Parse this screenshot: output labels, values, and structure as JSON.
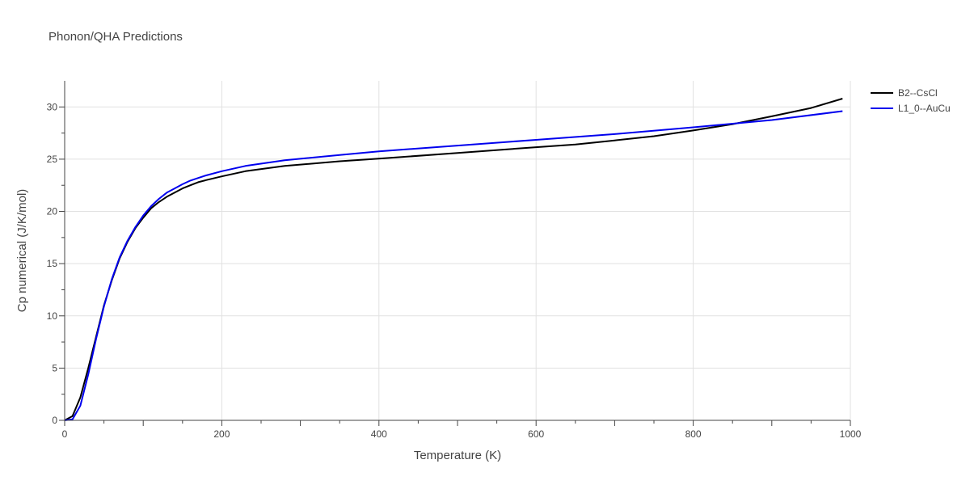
{
  "chart_data": {
    "type": "line",
    "title": "Phonon/QHA Predictions",
    "xlabel": "Temperature (K)",
    "ylabel": "Cp numerical (J/K/mol)",
    "xlim": [
      0,
      1000
    ],
    "ylim": [
      0,
      32.5
    ],
    "x_ticks": [
      0,
      200,
      400,
      600,
      800,
      1000
    ],
    "y_ticks": [
      0,
      5,
      10,
      15,
      20,
      25,
      30
    ],
    "grid": true,
    "legend_position": "top-right",
    "series": [
      {
        "name": "B2--CsCl",
        "color": "#000000",
        "x": [
          0,
          10,
          20,
          30,
          40,
          50,
          60,
          70,
          80,
          90,
          100,
          110,
          120,
          130,
          140,
          150,
          160,
          170,
          180,
          200,
          230,
          280,
          350,
          400,
          500,
          600,
          650,
          700,
          750,
          800,
          850,
          900,
          950,
          990
        ],
        "y": [
          0,
          0.4,
          2.2,
          5.0,
          8.0,
          11.0,
          13.4,
          15.5,
          17.1,
          18.4,
          19.4,
          20.3,
          20.9,
          21.4,
          21.8,
          22.2,
          22.5,
          22.8,
          23.0,
          23.35,
          23.85,
          24.35,
          24.8,
          25.05,
          25.6,
          26.15,
          26.4,
          26.8,
          27.2,
          27.75,
          28.35,
          29.1,
          29.9,
          30.8
        ]
      },
      {
        "name": "L1_0--AuCu",
        "color": "#0000ee",
        "x": [
          0,
          10,
          20,
          30,
          40,
          50,
          60,
          70,
          80,
          90,
          100,
          110,
          120,
          130,
          140,
          150,
          160,
          170,
          180,
          200,
          230,
          280,
          350,
          400,
          500,
          600,
          700,
          800,
          900,
          990
        ],
        "y": [
          0,
          0.1,
          1.4,
          4.4,
          7.8,
          10.9,
          13.5,
          15.6,
          17.2,
          18.5,
          19.6,
          20.5,
          21.2,
          21.8,
          22.2,
          22.6,
          22.95,
          23.2,
          23.45,
          23.85,
          24.35,
          24.9,
          25.4,
          25.75,
          26.3,
          26.85,
          27.4,
          28.05,
          28.75,
          29.6
        ]
      }
    ]
  }
}
